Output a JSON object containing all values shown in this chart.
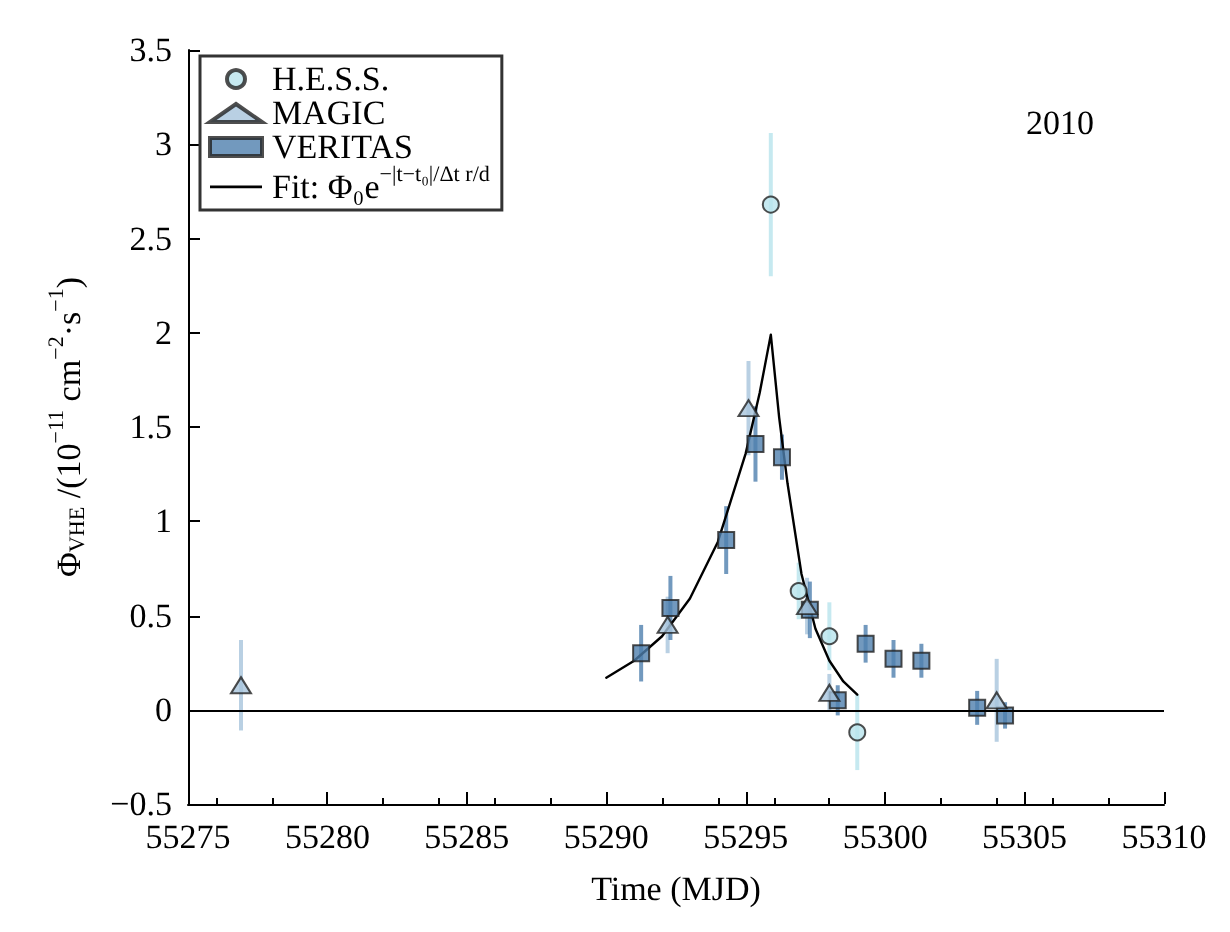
{
  "chart_data": {
    "type": "scatter",
    "xlabel": "Time (MJD)",
    "ylabel": "Φ$_{VHE}$ /(10$^{−11}$ cm$^{−2}$·s$^{−1}$)",
    "annotations": [
      "2010"
    ],
    "xlim": [
      55275,
      55310
    ],
    "xticks": [
      55275,
      55280,
      55285,
      55290,
      55295,
      55300,
      55305,
      55310
    ],
    "ylim": [
      -0.5,
      3.5
    ],
    "yticks": [
      {
        "value": -0.5,
        "label": "−0.5"
      },
      0,
      0.5,
      1,
      1.5,
      2,
      2.5,
      3,
      3.5
    ],
    "grid": false,
    "legend": "top left",
    "ref_lines": [
      {
        "axis": "y",
        "value": 0,
        "label": null,
        "color": "#000000"
      }
    ],
    "series": [
      {
        "name": "H.E.S.S.",
        "marker": "circle",
        "color": "#b8e4ec",
        "x": [
          55295.9,
          55296.9,
          55298.0,
          55299.0
        ],
        "values": [
          2.68,
          0.63,
          0.39,
          -0.12
        ],
        "errors": [
          0.38,
          0.15,
          0.18,
          0.2
        ]
      },
      {
        "name": "MAGIC",
        "marker": "triangle",
        "color": "#a8c4dc",
        "x": [
          55276.9,
          55292.2,
          55295.1,
          55297.2,
          55298.0,
          55304.0
        ],
        "values": [
          0.13,
          0.45,
          1.6,
          0.55,
          0.09,
          0.05
        ],
        "errors": [
          0.24,
          0.15,
          0.25,
          0.15,
          0.1,
          0.22
        ]
      },
      {
        "name": "VERITAS",
        "marker": "square",
        "color": "#4f7fae",
        "x": [
          55291.25,
          55292.3,
          55294.3,
          55295.35,
          55296.3,
          55297.3,
          55298.3,
          55299.3,
          55300.3,
          55301.3,
          55303.3,
          55304.3
        ],
        "values": [
          0.3,
          0.54,
          0.9,
          1.41,
          1.34,
          0.53,
          0.05,
          0.35,
          0.27,
          0.26,
          0.01,
          -0.03
        ],
        "errors": [
          0.15,
          0.17,
          0.18,
          0.2,
          0.12,
          0.15,
          0.08,
          0.1,
          0.1,
          0.09,
          0.09,
          0.07
        ]
      },
      {
        "name": "Fit: Φ₀e$^{−|t−t₀|/Δt r/d}$",
        "type": "line",
        "marker": "none",
        "line_style": "solid",
        "color": "#000000",
        "x": [
          55290,
          55291,
          55292,
          55293,
          55294,
          55295,
          55295.5,
          55295.9,
          55296.2,
          55296.5,
          55297,
          55297.5,
          55298,
          55298.5,
          55299
        ],
        "values": [
          0.17,
          0.26,
          0.39,
          0.59,
          0.89,
          1.36,
          1.68,
          1.99,
          1.55,
          1.2,
          0.72,
          0.43,
          0.26,
          0.15,
          0.08
        ]
      }
    ]
  }
}
